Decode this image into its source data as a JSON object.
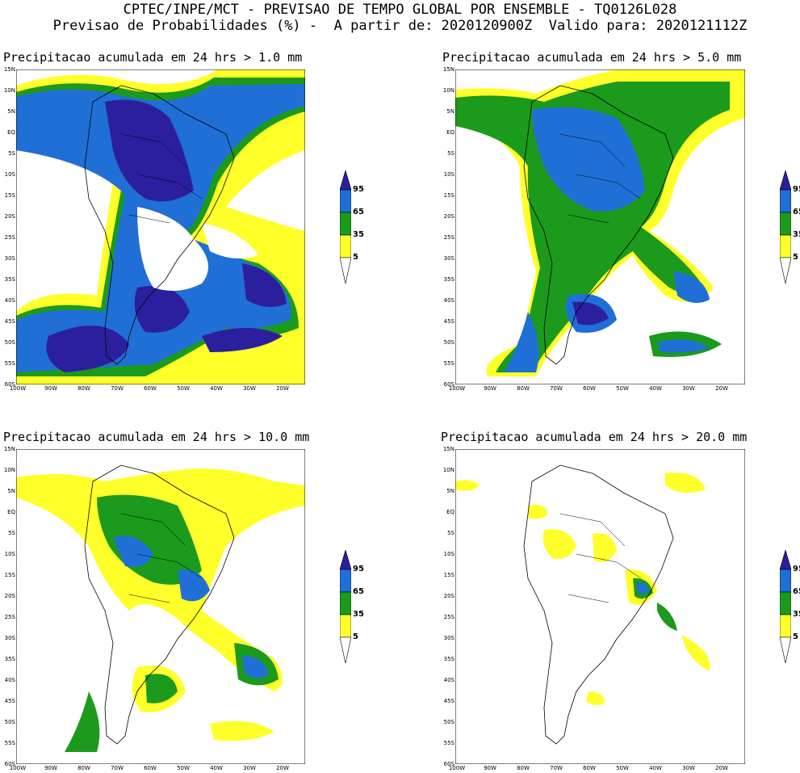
{
  "header": {
    "line1": "CPTEC/INPE/MCT - PREVISAO DE TEMPO GLOBAL POR ENSEMBLE - TQ0126L028",
    "line2": "Previsao de Probabilidades (%) -  A partir de: 2020120900Z  Valido para: 2020121112Z"
  },
  "panels": [
    {
      "title": "Precipitacao acumulada em 24 hrs > 1.0 mm"
    },
    {
      "title": "Precipitacao acumulada em 24 hrs > 5.0 mm"
    },
    {
      "title": "Precipitacao acumulada em 24 hrs > 10.0 mm"
    },
    {
      "title": "Precipitacao acumulada em 24 hrs > 20.0 mm"
    }
  ],
  "lat_labels": [
    "15N",
    "10N",
    "5N",
    "EQ",
    "5S",
    "10S",
    "15S",
    "20S",
    "25S",
    "30S",
    "35S",
    "40S",
    "45S",
    "50S",
    "55S",
    "60S"
  ],
  "lon_labels": [
    "100W",
    "90W",
    "80W",
    "70W",
    "60W",
    "50W",
    "40W",
    "30W",
    "20W"
  ],
  "colorbar": {
    "labels": [
      "95",
      "65",
      "35",
      "5"
    ],
    "colors": {
      "c95": "#2b1f9e",
      "c65": "#1f6fd6",
      "c35": "#1c9a1c",
      "c5": "#ffff2a"
    }
  }
}
